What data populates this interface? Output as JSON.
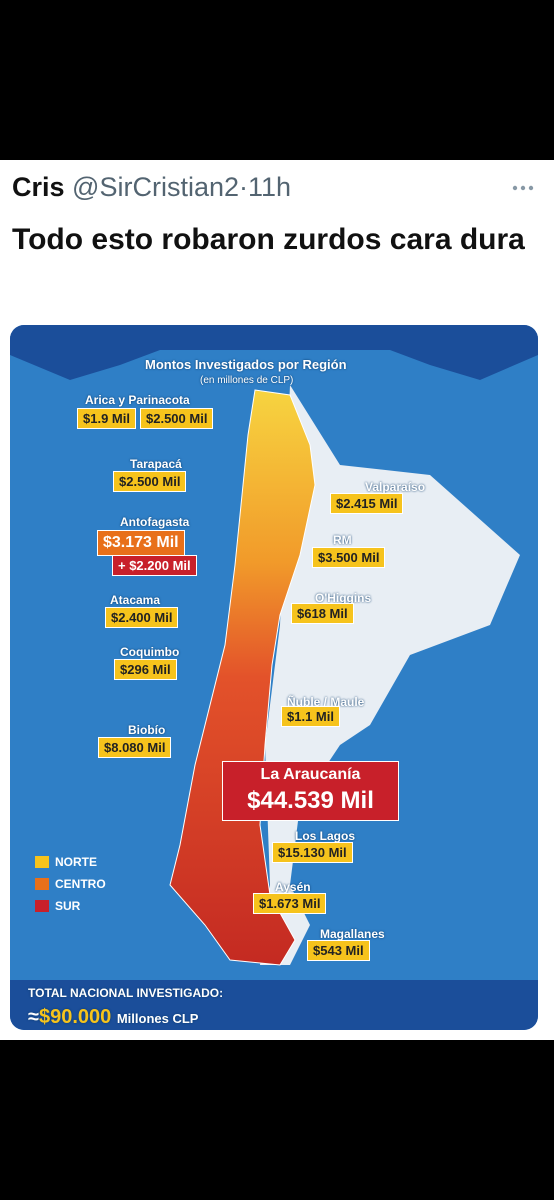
{
  "tweet": {
    "author": "Cris",
    "handle": "@SirCristian2",
    "separator": "·",
    "time": "11h",
    "text": "Todo esto robaron zurdos cara dura"
  },
  "image": {
    "subtitle": "Montos Investigados por Región",
    "unit": "(en millones de CLP)",
    "regions": [
      {
        "name": "Arica y Parinacota",
        "amounts": [
          "$1.9 Mil",
          "$2.500 Mil"
        ]
      },
      {
        "name": "Tarapacá",
        "amounts": [
          "$2.500 Mil"
        ]
      },
      {
        "name": "Antofagasta",
        "amounts": [
          "$3.173 Mil",
          "+ $2.200 Mil"
        ]
      },
      {
        "name": "Atacama",
        "amounts": [
          "$2.400 Mil"
        ]
      },
      {
        "name": "Coquimbo",
        "amounts": [
          "$296 Mil"
        ]
      },
      {
        "name": "Biobío",
        "amounts": [
          "$8.080 Mil"
        ]
      },
      {
        "name": "Valparaíso",
        "amounts": [
          "$2.415 Mil"
        ]
      },
      {
        "name": "RM",
        "amounts": [
          "$3.500 Mil"
        ]
      },
      {
        "name": "O'Higgins",
        "amounts": [
          "$618 Mil"
        ]
      },
      {
        "name": "Ñuble / Maule",
        "amounts": [
          "$1.1 Mil"
        ]
      },
      {
        "name": "La Araucanía",
        "amounts": [
          "$44.539 Mil"
        ]
      },
      {
        "name": "Los Lagos",
        "amounts": [
          "$15.130 Mil"
        ]
      },
      {
        "name": "Aysén",
        "amounts": [
          "$1.673 Mil"
        ]
      },
      {
        "name": "Magallanes",
        "amounts": [
          "$543 Mil"
        ]
      }
    ],
    "legend": [
      "NORTE",
      "CENTRO",
      "SUR"
    ],
    "total_label": "TOTAL NACIONAL INVESTIGADO:",
    "total_prefix": "≈",
    "total_value": "$90.000",
    "total_unit": "Millones CLP"
  }
}
